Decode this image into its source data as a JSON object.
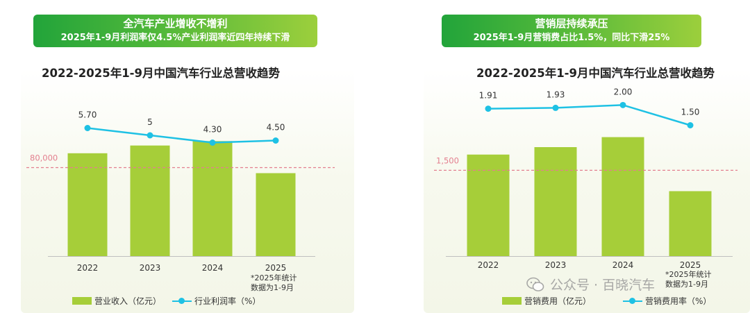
{
  "colors": {
    "bar": "#a6ce39",
    "line": "#1ec1e4",
    "refline": "#e37e8e",
    "banner_start": "#22a43a",
    "banner_end": "#9ccf3c"
  },
  "panels": [
    {
      "banner_line1": "全汽车产业增收不增利",
      "banner_line2": "2025年1-9月利润率仅4.5%产业利润率近四年持续下滑",
      "chart_title": "2022-2025年1-9月中国汽车行业总营收趋势",
      "legend_bar": "营业收入（亿元）",
      "legend_line": "行业利润率（%）",
      "note_line1": "*2025年统计",
      "note_line2": "数据为1-9月"
    },
    {
      "banner_line1": "营销层持续承压",
      "banner_line2": "2025年1-9月营销费占比1.5%，同比下滑25%",
      "chart_title": "2022-2025年1-9月中国汽车行业总营收趋势",
      "legend_bar": "营销费用（亿元）",
      "legend_line": "营销费用率（%）",
      "note_line1": "*2025年统计",
      "note_line2": "数据为1-9月"
    }
  ],
  "watermark": "公众号 · 百晓汽车",
  "chart_data": [
    {
      "type": "bar",
      "title": "2022-2025年1-9月中国汽车行业总营收趋势",
      "categories": [
        "2022",
        "2023",
        "2024",
        "2025"
      ],
      "series": [
        {
          "name": "营业收入（亿元）",
          "kind": "bar",
          "values": [
            93000,
            100000,
            104000,
            75000
          ]
        },
        {
          "name": "行业利润率（%）",
          "kind": "line",
          "values": [
            5.7,
            5.0,
            4.3,
            4.5
          ],
          "labels": [
            "5.70",
            "5",
            "4.30",
            "4.50"
          ]
        }
      ],
      "reference_line": {
        "value": 80000,
        "label": "80,000"
      },
      "ylim": [
        0,
        150000
      ],
      "line_ylim": [
        0,
        8
      ]
    },
    {
      "type": "bar",
      "title": "2022-2025年1-9月中国汽车行业总营收趋势",
      "categories": [
        "2022",
        "2023",
        "2024",
        "2025"
      ],
      "series": [
        {
          "name": "营销费用（亿元）",
          "kind": "bar",
          "values": [
            1775,
            1905,
            2080,
            1135
          ]
        },
        {
          "name": "营销费用率（%）",
          "kind": "line",
          "values": [
            1.91,
            1.93,
            2.0,
            1.5
          ],
          "labels": [
            "1.91",
            "1.93",
            "2.00",
            "1.50"
          ]
        }
      ],
      "reference_line": {
        "value": 1500,
        "label": "1,500"
      },
      "ylim": [
        0,
        2900
      ],
      "line_ylim": [
        0,
        2.4
      ]
    }
  ]
}
